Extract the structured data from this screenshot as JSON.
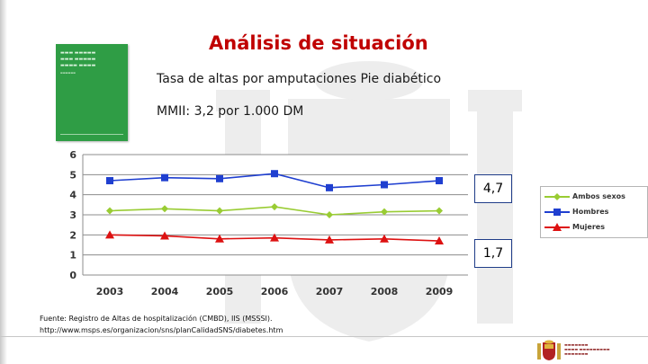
{
  "title": "Análisis de situación",
  "subtitle": "Tasa de altas por amputaciones Pie diabético",
  "mmii_text": "MMII: 3,2 por 1.000 DM",
  "source_line1": "Fuente: Registro de Altas de hospitalización (CMBD), IIS (MSSSI).",
  "source_line2": "http://www.msps.es/organizacion/sns/planCalidadSNS/diabetes.htm",
  "colors": {
    "title": "#c00000",
    "ambos": "#99cc33",
    "hombres": "#1f3fd0",
    "mujeres": "#dd1111",
    "cover": "#2f9d45"
  },
  "icons": {
    "cover": "report-cover-icon",
    "watermark": "coat-of-arms-watermark-icon",
    "ministry": "ministry-shield-icon"
  },
  "chart_data": {
    "type": "line",
    "title": "",
    "xlabel": "",
    "ylabel": "",
    "categories": [
      "2003",
      "2004",
      "2005",
      "2006",
      "2007",
      "2008",
      "2009"
    ],
    "yticks": [
      "0",
      "1",
      "2",
      "3",
      "4",
      "5",
      "6"
    ],
    "ylim": [
      0,
      6
    ],
    "grid": true,
    "legend_position": "right",
    "series": [
      {
        "name": "Ambos sexos",
        "marker": "diamond",
        "values": [
          3.2,
          3.3,
          3.2,
          3.4,
          3.0,
          3.15,
          3.2
        ]
      },
      {
        "name": "Hombres",
        "marker": "square",
        "values": [
          4.7,
          4.85,
          4.8,
          5.05,
          4.35,
          4.5,
          4.7
        ]
      },
      {
        "name": "Mujeres",
        "marker": "triangle",
        "values": [
          2.0,
          1.95,
          1.8,
          1.85,
          1.75,
          1.8,
          1.7
        ]
      }
    ],
    "annotations": [
      "4,7",
      "1,7"
    ]
  }
}
